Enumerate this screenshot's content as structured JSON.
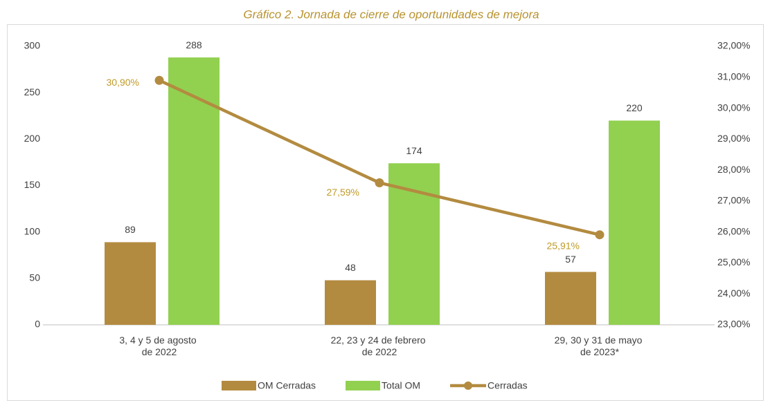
{
  "chart_data": {
    "type": "bar",
    "title": "Gráfico 2. Jornada de cierre de oportunidades de mejora",
    "categories": [
      "3, 4 y 5 de agosto de 2022",
      "22, 23 y 24 de febrero de 2022",
      "29, 30 y 31 de mayo de 2023*"
    ],
    "series": [
      {
        "name": "OM Cerradas",
        "color": "#b38b40",
        "values": [
          89,
          48,
          57
        ]
      },
      {
        "name": "Total OM",
        "color": "#92d050",
        "values": [
          288,
          174,
          220
        ]
      },
      {
        "name": "Cerradas",
        "type": "line",
        "axis": "y2",
        "color": "#b38b40",
        "values": [
          30.9,
          27.59,
          25.91
        ],
        "value_labels": [
          "30,90%",
          "27,59%",
          "25,91%"
        ]
      }
    ],
    "ylim": [
      0,
      300
    ],
    "yticks": [
      0,
      50,
      100,
      150,
      200,
      250,
      300
    ],
    "y2lim": [
      23,
      32
    ],
    "y2ticks": [
      {
        "value": 23,
        "label": "23,00%"
      },
      {
        "value": 24,
        "label": "24,00%"
      },
      {
        "value": 25,
        "label": "25,00%"
      },
      {
        "value": 26,
        "label": "26,00%"
      },
      {
        "value": 27,
        "label": "27,00%"
      },
      {
        "value": 28,
        "label": "28,00%"
      },
      {
        "value": 29,
        "label": "29,00%"
      },
      {
        "value": 30,
        "label": "30,00%"
      },
      {
        "value": 31,
        "label": "31,00%"
      },
      {
        "value": 32,
        "label": "32,00%"
      }
    ],
    "legend": "bottom",
    "grid": false
  }
}
